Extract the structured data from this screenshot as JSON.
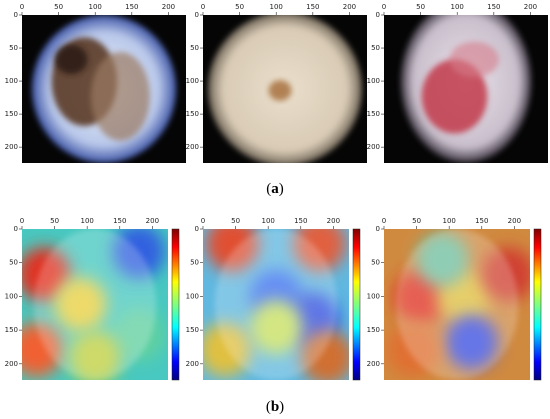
{
  "figure": {
    "xlim": [
      0,
      224
    ],
    "ylim": [
      0,
      224
    ],
    "xticks": [
      0,
      50,
      100,
      150,
      200
    ],
    "yticks": [
      0,
      50,
      100,
      150,
      200
    ],
    "rows": [
      {
        "caption": {
          "prefix": "(",
          "label": "a",
          "suffix": ")"
        },
        "colorbar": false
      },
      {
        "caption": {
          "prefix": "(",
          "label": "b",
          "suffix": ")"
        },
        "colorbar": true
      }
    ]
  }
}
